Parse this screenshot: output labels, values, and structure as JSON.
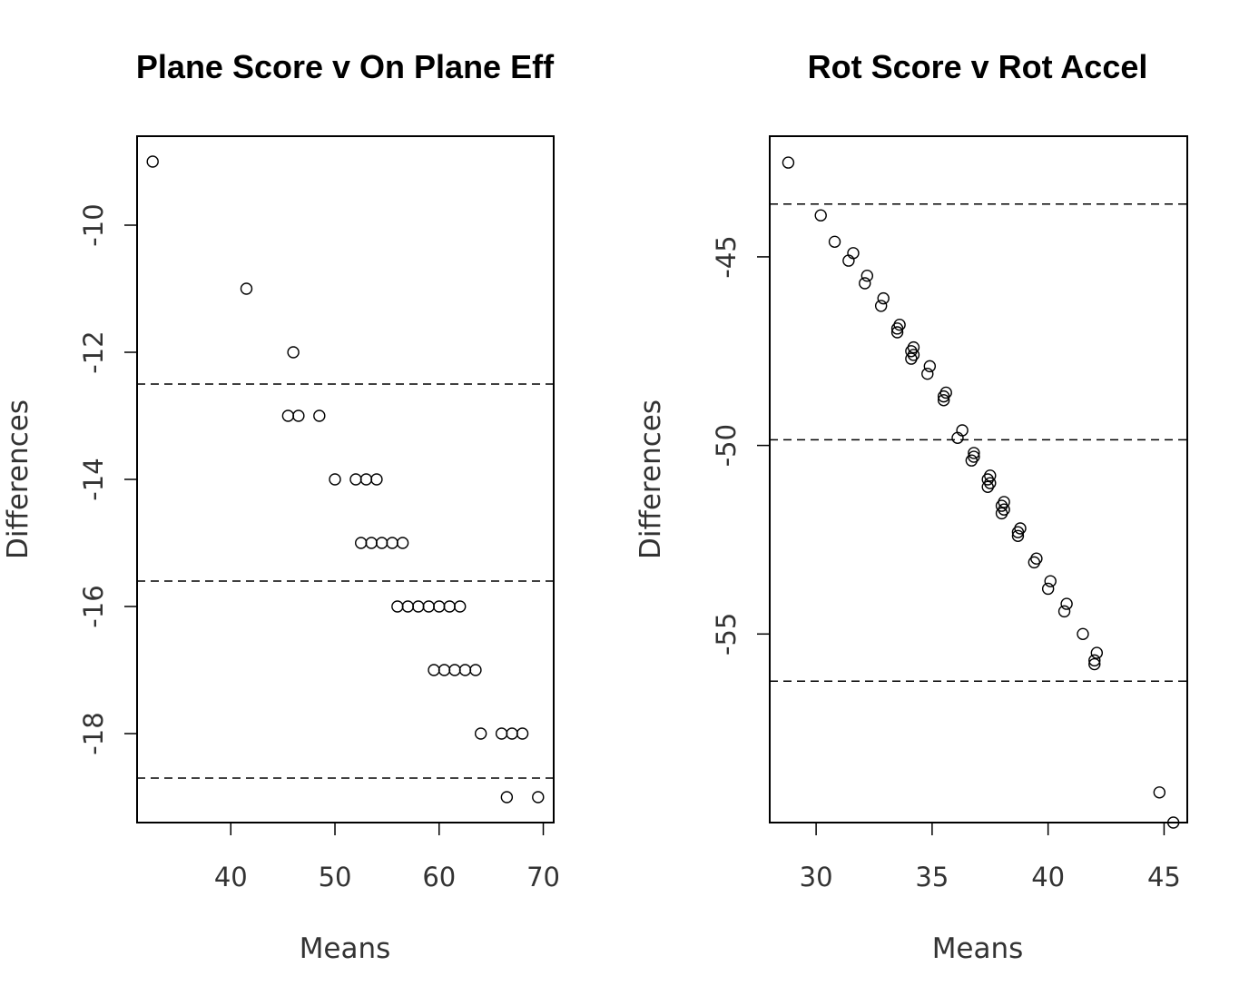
{
  "chart_data": [
    {
      "type": "scatter",
      "title": "Plane Score v On Plane Eff",
      "xlabel": "Means",
      "ylabel": "Differences",
      "xlim": [
        31,
        71
      ],
      "ylim": [
        -19.4,
        -8.6
      ],
      "xticks": [
        40,
        50,
        60,
        70
      ],
      "yticks": [
        -10,
        -12,
        -14,
        -16,
        -18
      ],
      "hlines": [
        -12.5,
        -15.6,
        -18.7
      ],
      "points": [
        [
          32.5,
          -9
        ],
        [
          41.5,
          -11
        ],
        [
          46,
          -12
        ],
        [
          45.5,
          -13
        ],
        [
          46.5,
          -13
        ],
        [
          48.5,
          -13
        ],
        [
          50,
          -14
        ],
        [
          52,
          -14
        ],
        [
          53,
          -14
        ],
        [
          54,
          -14
        ],
        [
          52.5,
          -15
        ],
        [
          53.5,
          -15
        ],
        [
          54.5,
          -15
        ],
        [
          55.5,
          -15
        ],
        [
          56.5,
          -15
        ],
        [
          56,
          -16
        ],
        [
          57,
          -16
        ],
        [
          58,
          -16
        ],
        [
          59,
          -16
        ],
        [
          60,
          -16
        ],
        [
          61,
          -16
        ],
        [
          62,
          -16
        ],
        [
          59.5,
          -17
        ],
        [
          60.5,
          -17
        ],
        [
          61.5,
          -17
        ],
        [
          62.5,
          -17
        ],
        [
          63.5,
          -17
        ],
        [
          64,
          -18
        ],
        [
          66,
          -18
        ],
        [
          67,
          -18
        ],
        [
          68,
          -18
        ],
        [
          66.5,
          -19
        ],
        [
          69.5,
          -19
        ]
      ]
    },
    {
      "type": "scatter",
      "title": "Rot Score v Rot Accel",
      "xlabel": "Means",
      "ylabel": "Differences",
      "xlim": [
        28,
        46
      ],
      "ylim": [
        -60,
        -41.8
      ],
      "xticks": [
        30,
        35,
        40,
        45
      ],
      "yticks": [
        -45,
        -50,
        -55
      ],
      "hlines": [
        -43.6,
        -49.85,
        -56.25
      ],
      "points": [
        [
          28.8,
          -42.5
        ],
        [
          30.2,
          -43.9
        ],
        [
          30.8,
          -44.6
        ],
        [
          31.4,
          -45.1
        ],
        [
          31.6,
          -44.9
        ],
        [
          32.1,
          -45.7
        ],
        [
          32.2,
          -45.5
        ],
        [
          32.8,
          -46.3
        ],
        [
          32.9,
          -46.1
        ],
        [
          33.5,
          -46.9
        ],
        [
          33.6,
          -46.8
        ],
        [
          33.5,
          -47.0
        ],
        [
          34.1,
          -47.5
        ],
        [
          34.2,
          -47.4
        ],
        [
          34.1,
          -47.7
        ],
        [
          34.2,
          -47.6
        ],
        [
          34.8,
          -48.1
        ],
        [
          34.9,
          -47.9
        ],
        [
          35.5,
          -48.7
        ],
        [
          35.6,
          -48.6
        ],
        [
          35.5,
          -48.8
        ],
        [
          36.1,
          -49.8
        ],
        [
          36.3,
          -49.6
        ],
        [
          36.7,
          -50.4
        ],
        [
          36.8,
          -50.2
        ],
        [
          36.8,
          -50.3
        ],
        [
          37.4,
          -50.9
        ],
        [
          37.5,
          -50.8
        ],
        [
          37.4,
          -51.1
        ],
        [
          37.5,
          -51.0
        ],
        [
          38.0,
          -51.6
        ],
        [
          38.1,
          -51.5
        ],
        [
          38.0,
          -51.8
        ],
        [
          38.1,
          -51.7
        ],
        [
          38.7,
          -52.3
        ],
        [
          38.8,
          -52.2
        ],
        [
          38.7,
          -52.4
        ],
        [
          39.4,
          -53.1
        ],
        [
          39.5,
          -53.0
        ],
        [
          40.0,
          -53.8
        ],
        [
          40.1,
          -53.6
        ],
        [
          40.7,
          -54.4
        ],
        [
          40.8,
          -54.2
        ],
        [
          41.5,
          -55.0
        ],
        [
          42.0,
          -55.7
        ],
        [
          42.1,
          -55.5
        ],
        [
          42.0,
          -55.8
        ],
        [
          44.8,
          -59.2
        ],
        [
          45.4,
          -60.0
        ]
      ]
    }
  ]
}
